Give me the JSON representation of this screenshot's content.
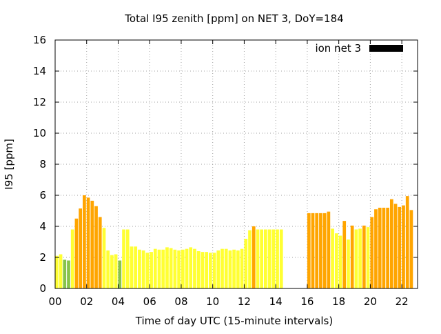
{
  "chart_data": {
    "type": "bar",
    "title": "Total I95 zenith [ppm] on NET 3, DoY=184",
    "xlabel": "Time of day UTC (15-minute intervals)",
    "ylabel": "I95 [ppm]",
    "xlim": [
      0,
      23
    ],
    "ylim": [
      0,
      16
    ],
    "x_tick_labels": [
      "00",
      "02",
      "04",
      "06",
      "08",
      "10",
      "12",
      "14",
      "16",
      "18",
      "20",
      "22"
    ],
    "y_tick_labels": [
      "0",
      "2",
      "4",
      "6",
      "8",
      "10",
      "12",
      "14",
      "16"
    ],
    "legend": {
      "label": "ion net 3",
      "color": "#000000",
      "position": "top-right"
    },
    "colors": {
      "yellow": "#ffff33",
      "orange": "#ffa500",
      "green": "#88c34a"
    },
    "interval_hours": 0.25,
    "bars": [
      {
        "t": "00:00",
        "value": 2.1,
        "color": "yellow"
      },
      {
        "t": "00:15",
        "value": 2.2,
        "color": "yellow"
      },
      {
        "t": "00:30",
        "value": 1.85,
        "color": "green"
      },
      {
        "t": "00:45",
        "value": 1.8,
        "color": "green"
      },
      {
        "t": "01:00",
        "value": 3.8,
        "color": "yellow"
      },
      {
        "t": "01:15",
        "value": 4.5,
        "color": "orange"
      },
      {
        "t": "01:30",
        "value": 5.15,
        "color": "orange"
      },
      {
        "t": "01:45",
        "value": 6.0,
        "color": "orange"
      },
      {
        "t": "02:00",
        "value": 5.85,
        "color": "orange"
      },
      {
        "t": "02:15",
        "value": 5.65,
        "color": "orange"
      },
      {
        "t": "02:30",
        "value": 5.3,
        "color": "orange"
      },
      {
        "t": "02:45",
        "value": 4.6,
        "color": "orange"
      },
      {
        "t": "03:00",
        "value": 3.9,
        "color": "yellow"
      },
      {
        "t": "03:15",
        "value": 2.45,
        "color": "yellow"
      },
      {
        "t": "03:30",
        "value": 2.15,
        "color": "yellow"
      },
      {
        "t": "03:45",
        "value": 2.2,
        "color": "yellow"
      },
      {
        "t": "04:00",
        "value": 1.8,
        "color": "green"
      },
      {
        "t": "04:15",
        "value": 3.8,
        "color": "yellow"
      },
      {
        "t": "04:30",
        "value": 3.8,
        "color": "yellow"
      },
      {
        "t": "04:45",
        "value": 2.7,
        "color": "yellow"
      },
      {
        "t": "05:00",
        "value": 2.7,
        "color": "yellow"
      },
      {
        "t": "05:15",
        "value": 2.5,
        "color": "yellow"
      },
      {
        "t": "05:30",
        "value": 2.45,
        "color": "yellow"
      },
      {
        "t": "05:45",
        "value": 2.3,
        "color": "yellow"
      },
      {
        "t": "06:00",
        "value": 2.35,
        "color": "yellow"
      },
      {
        "t": "06:15",
        "value": 2.55,
        "color": "yellow"
      },
      {
        "t": "06:30",
        "value": 2.5,
        "color": "yellow"
      },
      {
        "t": "06:45",
        "value": 2.5,
        "color": "yellow"
      },
      {
        "t": "07:00",
        "value": 2.65,
        "color": "yellow"
      },
      {
        "t": "07:15",
        "value": 2.6,
        "color": "yellow"
      },
      {
        "t": "07:30",
        "value": 2.5,
        "color": "yellow"
      },
      {
        "t": "07:45",
        "value": 2.45,
        "color": "yellow"
      },
      {
        "t": "08:00",
        "value": 2.5,
        "color": "yellow"
      },
      {
        "t": "08:15",
        "value": 2.55,
        "color": "yellow"
      },
      {
        "t": "08:30",
        "value": 2.65,
        "color": "yellow"
      },
      {
        "t": "08:45",
        "value": 2.55,
        "color": "yellow"
      },
      {
        "t": "09:00",
        "value": 2.4,
        "color": "yellow"
      },
      {
        "t": "09:15",
        "value": 2.35,
        "color": "yellow"
      },
      {
        "t": "09:30",
        "value": 2.35,
        "color": "yellow"
      },
      {
        "t": "09:45",
        "value": 2.3,
        "color": "yellow"
      },
      {
        "t": "10:00",
        "value": 2.3,
        "color": "yellow"
      },
      {
        "t": "10:15",
        "value": 2.45,
        "color": "yellow"
      },
      {
        "t": "10:30",
        "value": 2.55,
        "color": "yellow"
      },
      {
        "t": "10:45",
        "value": 2.55,
        "color": "yellow"
      },
      {
        "t": "11:00",
        "value": 2.45,
        "color": "yellow"
      },
      {
        "t": "11:15",
        "value": 2.5,
        "color": "yellow"
      },
      {
        "t": "11:30",
        "value": 2.45,
        "color": "yellow"
      },
      {
        "t": "11:45",
        "value": 2.55,
        "color": "yellow"
      },
      {
        "t": "12:00",
        "value": 3.2,
        "color": "yellow"
      },
      {
        "t": "12:15",
        "value": 3.75,
        "color": "yellow"
      },
      {
        "t": "12:30",
        "value": 4.0,
        "color": "orange"
      },
      {
        "t": "12:45",
        "value": 3.8,
        "color": "yellow"
      },
      {
        "t": "13:00",
        "value": 3.8,
        "color": "yellow"
      },
      {
        "t": "13:15",
        "value": 3.8,
        "color": "yellow"
      },
      {
        "t": "13:30",
        "value": 3.8,
        "color": "yellow"
      },
      {
        "t": "13:45",
        "value": 3.8,
        "color": "yellow"
      },
      {
        "t": "14:00",
        "value": 3.8,
        "color": "yellow"
      },
      {
        "t": "14:15",
        "value": 3.8,
        "color": "yellow"
      },
      {
        "t": "16:00",
        "value": 4.85,
        "color": "orange"
      },
      {
        "t": "16:15",
        "value": 4.85,
        "color": "orange"
      },
      {
        "t": "16:30",
        "value": 4.85,
        "color": "orange"
      },
      {
        "t": "16:45",
        "value": 4.85,
        "color": "orange"
      },
      {
        "t": "17:00",
        "value": 4.85,
        "color": "orange"
      },
      {
        "t": "17:15",
        "value": 4.95,
        "color": "orange"
      },
      {
        "t": "17:30",
        "value": 3.85,
        "color": "yellow"
      },
      {
        "t": "17:45",
        "value": 3.55,
        "color": "yellow"
      },
      {
        "t": "18:00",
        "value": 3.4,
        "color": "yellow"
      },
      {
        "t": "18:15",
        "value": 4.35,
        "color": "orange"
      },
      {
        "t": "18:30",
        "value": 3.15,
        "color": "yellow"
      },
      {
        "t": "18:45",
        "value": 4.05,
        "color": "orange"
      },
      {
        "t": "19:00",
        "value": 3.8,
        "color": "yellow"
      },
      {
        "t": "19:15",
        "value": 3.85,
        "color": "yellow"
      },
      {
        "t": "19:30",
        "value": 4.05,
        "color": "orange"
      },
      {
        "t": "19:45",
        "value": 3.95,
        "color": "yellow"
      },
      {
        "t": "20:00",
        "value": 4.6,
        "color": "orange"
      },
      {
        "t": "20:15",
        "value": 5.1,
        "color": "orange"
      },
      {
        "t": "20:30",
        "value": 5.2,
        "color": "orange"
      },
      {
        "t": "20:45",
        "value": 5.2,
        "color": "orange"
      },
      {
        "t": "21:00",
        "value": 5.2,
        "color": "orange"
      },
      {
        "t": "21:15",
        "value": 5.75,
        "color": "orange"
      },
      {
        "t": "21:30",
        "value": 5.45,
        "color": "orange"
      },
      {
        "t": "21:45",
        "value": 5.25,
        "color": "orange"
      },
      {
        "t": "22:00",
        "value": 5.35,
        "color": "orange"
      },
      {
        "t": "22:15",
        "value": 5.95,
        "color": "orange"
      },
      {
        "t": "22:30",
        "value": 5.05,
        "color": "orange"
      }
    ]
  }
}
